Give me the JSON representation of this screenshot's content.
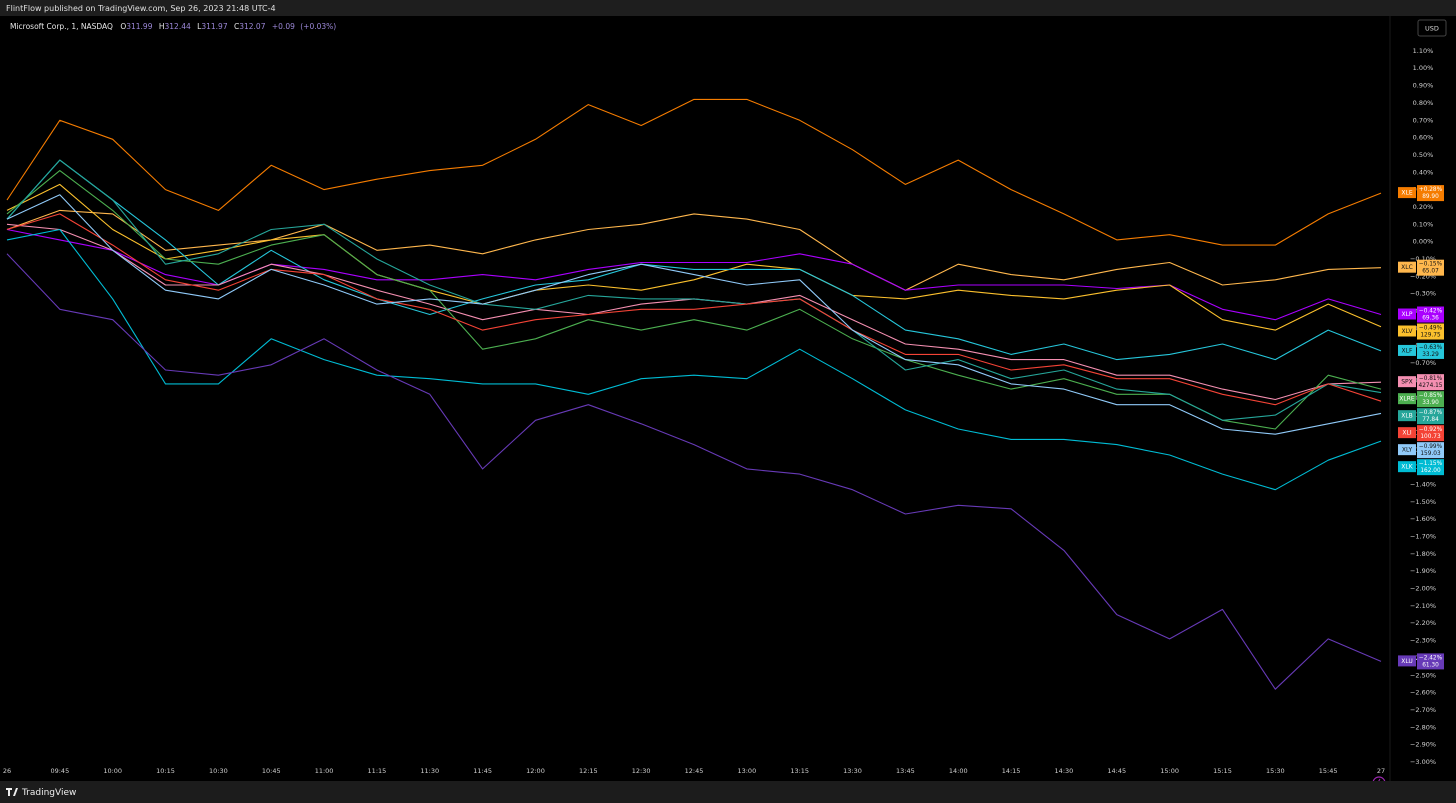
{
  "header": {
    "text": "FlintFlow published on TradingView.com, Sep 26, 2023 21:48 UTC-4"
  },
  "footer": {
    "brand": "TradingView"
  },
  "chart_data": {
    "type": "line",
    "currency": "USD",
    "grid": false,
    "symbol_info": {
      "name": "Microsoft Corp., 1, NASDAQ",
      "open_label": "O",
      "open": 311.99,
      "high_label": "H",
      "high": 312.44,
      "low_label": "L",
      "low": 311.97,
      "close_label": "C",
      "close": 312.07,
      "change": {
        "value": 0.09,
        "label": "+0.09"
      },
      "change_pct": {
        "value": 0.03,
        "label": "(+0.03%)"
      }
    },
    "x": [
      "26",
      "09:45",
      "10:00",
      "10:15",
      "10:30",
      "10:45",
      "11:00",
      "11:15",
      "11:30",
      "11:45",
      "12:00",
      "12:15",
      "12:30",
      "12:45",
      "13:00",
      "13:15",
      "13:30",
      "13:45",
      "14:00",
      "14:15",
      "14:30",
      "14:45",
      "15:00",
      "15:15",
      "15:30",
      "15:45",
      "27"
    ],
    "ylim": [
      -3.0,
      1.18
    ],
    "yticks": [
      {
        "value": 1.1,
        "label": "1.10%"
      },
      {
        "value": 1.0,
        "label": "1.00%"
      },
      {
        "value": 0.9,
        "label": "0.90%"
      },
      {
        "value": 0.8,
        "label": "0.80%"
      },
      {
        "value": 0.7,
        "label": "0.70%"
      },
      {
        "value": 0.6,
        "label": "0.60%"
      },
      {
        "value": 0.5,
        "label": "0.50%"
      },
      {
        "value": 0.4,
        "label": "0.40%"
      },
      {
        "value": 0.3,
        "label": "0.30%"
      },
      {
        "value": 0.2,
        "label": "0.20%"
      },
      {
        "value": 0.1,
        "label": "0.10%"
      },
      {
        "value": 0.0,
        "label": "0.00%"
      },
      {
        "value": -0.1,
        "label": "−0.10%"
      },
      {
        "value": -0.2,
        "label": "−0.20%"
      },
      {
        "value": -0.3,
        "label": "−0.30%"
      },
      {
        "value": -0.4,
        "label": "−0.40%"
      },
      {
        "value": -0.5,
        "label": "−0.50%"
      },
      {
        "value": -0.6,
        "label": "−0.60%"
      },
      {
        "value": -0.7,
        "label": "−0.70%"
      },
      {
        "value": -0.8,
        "label": "−0.80%"
      },
      {
        "value": -0.9,
        "label": "−0.90%"
      },
      {
        "value": -1.0,
        "label": "−1.00%"
      },
      {
        "value": -1.1,
        "label": "−1.10%"
      },
      {
        "value": -1.2,
        "label": "−1.20%"
      },
      {
        "value": -1.3,
        "label": "−1.30%"
      },
      {
        "value": -1.4,
        "label": "−1.40%"
      },
      {
        "value": -1.5,
        "label": "−1.50%"
      },
      {
        "value": -1.6,
        "label": "−1.60%"
      },
      {
        "value": -1.7,
        "label": "−1.70%"
      },
      {
        "value": -1.8,
        "label": "−1.80%"
      },
      {
        "value": -1.9,
        "label": "−1.90%"
      },
      {
        "value": -2.0,
        "label": "−2.00%"
      },
      {
        "value": -2.1,
        "label": "−2.10%"
      },
      {
        "value": -2.2,
        "label": "−2.20%"
      },
      {
        "value": -2.3,
        "label": "−2.30%"
      },
      {
        "value": -2.4,
        "label": "−2.40%"
      },
      {
        "value": -2.5,
        "label": "−2.50%"
      },
      {
        "value": -2.6,
        "label": "−2.60%"
      },
      {
        "value": -2.7,
        "label": "−2.70%"
      },
      {
        "value": -2.8,
        "label": "−2.80%"
      },
      {
        "value": -2.9,
        "label": "−2.90%"
      },
      {
        "value": -3.0,
        "label": "−3.00%"
      }
    ],
    "series": [
      {
        "name": "XLE",
        "color": "#f57c00",
        "last": {
          "value": 0.28,
          "label": "+0.28%"
        },
        "price": {
          "value": 89.9,
          "label": "89.90"
        },
        "values": [
          0.24,
          0.7,
          0.59,
          0.3,
          0.18,
          0.44,
          0.3,
          0.36,
          0.41,
          0.44,
          0.59,
          0.79,
          0.67,
          0.82,
          0.82,
          0.7,
          0.53,
          0.33,
          0.47,
          0.3,
          0.16,
          0.01,
          0.04,
          -0.02,
          -0.02,
          0.16,
          0.28
        ]
      },
      {
        "name": "XLC",
        "color": "#ffb74d",
        "last": {
          "value": -0.15,
          "label": "−0.15%"
        },
        "price": {
          "value": 65.07,
          "label": "65.07"
        },
        "values": [
          0.07,
          0.18,
          0.16,
          -0.05,
          -0.02,
          0.01,
          0.1,
          -0.05,
          -0.02,
          -0.07,
          0.01,
          0.07,
          0.1,
          0.16,
          0.13,
          0.07,
          -0.13,
          -0.28,
          -0.13,
          -0.19,
          -0.22,
          -0.16,
          -0.12,
          -0.25,
          -0.22,
          -0.16,
          -0.15
        ]
      },
      {
        "name": "XLP",
        "color": "#aa00ff",
        "last": {
          "value": -0.42,
          "label": "−0.42%"
        },
        "price": {
          "value": 69.36,
          "label": "69.36"
        },
        "values": [
          0.07,
          0.01,
          -0.05,
          -0.19,
          -0.25,
          -0.13,
          -0.16,
          -0.22,
          -0.22,
          -0.19,
          -0.22,
          -0.16,
          -0.12,
          -0.12,
          -0.12,
          -0.07,
          -0.13,
          -0.28,
          -0.25,
          -0.25,
          -0.25,
          -0.27,
          -0.25,
          -0.39,
          -0.45,
          -0.33,
          -0.42
        ]
      },
      {
        "name": "XLV",
        "color": "#fbc02d",
        "last": {
          "value": -0.49,
          "label": "−0.49%"
        },
        "price": {
          "value": 129.75,
          "label": "129.75"
        },
        "values": [
          0.18,
          0.33,
          0.07,
          -0.1,
          -0.05,
          0.01,
          0.04,
          -0.19,
          -0.28,
          -0.36,
          -0.28,
          -0.25,
          -0.28,
          -0.22,
          -0.13,
          -0.16,
          -0.31,
          -0.33,
          -0.28,
          -0.31,
          -0.33,
          -0.28,
          -0.25,
          -0.45,
          -0.51,
          -0.36,
          -0.49
        ]
      },
      {
        "name": "XLF",
        "color": "#26c6da",
        "last": {
          "value": -0.63,
          "label": "−0.63%"
        },
        "price": {
          "value": 33.29,
          "label": "33.29"
        },
        "values": [
          0.13,
          0.47,
          0.24,
          0.01,
          -0.25,
          -0.05,
          -0.22,
          -0.33,
          -0.42,
          -0.33,
          -0.25,
          -0.22,
          -0.13,
          -0.16,
          -0.16,
          -0.16,
          -0.31,
          -0.51,
          -0.56,
          -0.65,
          -0.59,
          -0.68,
          -0.65,
          -0.59,
          -0.68,
          -0.51,
          -0.63
        ]
      },
      {
        "name": "SPX",
        "color": "#f48fb1",
        "last": {
          "value": -0.81,
          "label": "−0.81%"
        },
        "price": {
          "value": 4274.15,
          "label": "4274.15"
        },
        "values": [
          0.1,
          0.07,
          -0.05,
          -0.25,
          -0.25,
          -0.13,
          -0.19,
          -0.28,
          -0.36,
          -0.45,
          -0.39,
          -0.42,
          -0.36,
          -0.33,
          -0.36,
          -0.31,
          -0.45,
          -0.59,
          -0.62,
          -0.68,
          -0.68,
          -0.77,
          -0.77,
          -0.85,
          -0.91,
          -0.82,
          -0.81
        ]
      },
      {
        "name": "XLRE",
        "color": "#4caf50",
        "last": {
          "value": -0.85,
          "label": "−0.85%"
        },
        "price": {
          "value": 33.9,
          "label": "33.90"
        },
        "values": [
          0.16,
          0.41,
          0.18,
          -0.1,
          -0.13,
          -0.02,
          0.04,
          -0.19,
          -0.28,
          -0.62,
          -0.56,
          -0.45,
          -0.51,
          -0.45,
          -0.51,
          -0.39,
          -0.56,
          -0.68,
          -0.77,
          -0.85,
          -0.79,
          -0.88,
          -0.88,
          -1.03,
          -1.08,
          -0.77,
          -0.85
        ]
      },
      {
        "name": "XLB",
        "color": "#26a69a",
        "last": {
          "value": -0.87,
          "label": "−0.87%"
        },
        "price": {
          "value": 77.84,
          "label": "77.84"
        },
        "values": [
          0.13,
          0.47,
          0.24,
          -0.13,
          -0.07,
          0.07,
          0.1,
          -0.1,
          -0.25,
          -0.36,
          -0.39,
          -0.31,
          -0.33,
          -0.33,
          -0.36,
          -0.33,
          -0.51,
          -0.74,
          -0.68,
          -0.79,
          -0.74,
          -0.85,
          -0.88,
          -1.03,
          -1.0,
          -0.82,
          -0.87
        ]
      },
      {
        "name": "XLI",
        "color": "#f44336",
        "last": {
          "value": -0.92,
          "label": "−0.92%"
        },
        "price": {
          "value": 100.73,
          "label": "100.73"
        },
        "values": [
          0.07,
          0.16,
          -0.02,
          -0.22,
          -0.28,
          -0.16,
          -0.19,
          -0.33,
          -0.39,
          -0.51,
          -0.45,
          -0.42,
          -0.39,
          -0.39,
          -0.36,
          -0.33,
          -0.51,
          -0.65,
          -0.65,
          -0.74,
          -0.71,
          -0.79,
          -0.79,
          -0.88,
          -0.94,
          -0.82,
          -0.92
        ]
      },
      {
        "name": "XLY",
        "color": "#90caf9",
        "last": {
          "value": -0.99,
          "label": "−0.99%"
        },
        "price": {
          "value": 159.03,
          "label": "159.03"
        },
        "values": [
          0.13,
          0.27,
          -0.05,
          -0.28,
          -0.33,
          -0.16,
          -0.25,
          -0.36,
          -0.33,
          -0.36,
          -0.28,
          -0.19,
          -0.13,
          -0.19,
          -0.25,
          -0.22,
          -0.51,
          -0.68,
          -0.71,
          -0.82,
          -0.85,
          -0.94,
          -0.94,
          -1.08,
          -1.11,
          -1.05,
          -0.99
        ]
      },
      {
        "name": "XLK",
        "color": "#00bcd4",
        "last": {
          "value": -1.15,
          "label": "−1.15%"
        },
        "price": {
          "value": 162.0,
          "label": "162.00"
        },
        "values": [
          0.01,
          0.07,
          -0.33,
          -0.82,
          -0.82,
          -0.56,
          -0.68,
          -0.77,
          -0.79,
          -0.82,
          -0.82,
          -0.88,
          -0.79,
          -0.77,
          -0.79,
          -0.62,
          -0.79,
          -0.97,
          -1.08,
          -1.14,
          -1.14,
          -1.17,
          -1.23,
          -1.34,
          -1.43,
          -1.26,
          -1.15
        ]
      },
      {
        "name": "XLU",
        "color": "#673ab7",
        "last": {
          "value": -2.42,
          "label": "−2.42%"
        },
        "price": {
          "value": 61.3,
          "label": "61.30"
        },
        "values": [
          -0.07,
          -0.39,
          -0.45,
          -0.74,
          -0.77,
          -0.71,
          -0.56,
          -0.74,
          -0.88,
          -1.31,
          -1.03,
          -0.94,
          -1.05,
          -1.17,
          -1.31,
          -1.34,
          -1.43,
          -1.57,
          -1.52,
          -1.54,
          -1.78,
          -2.15,
          -2.29,
          -2.12,
          -2.58,
          -2.29,
          -2.42
        ]
      }
    ]
  }
}
